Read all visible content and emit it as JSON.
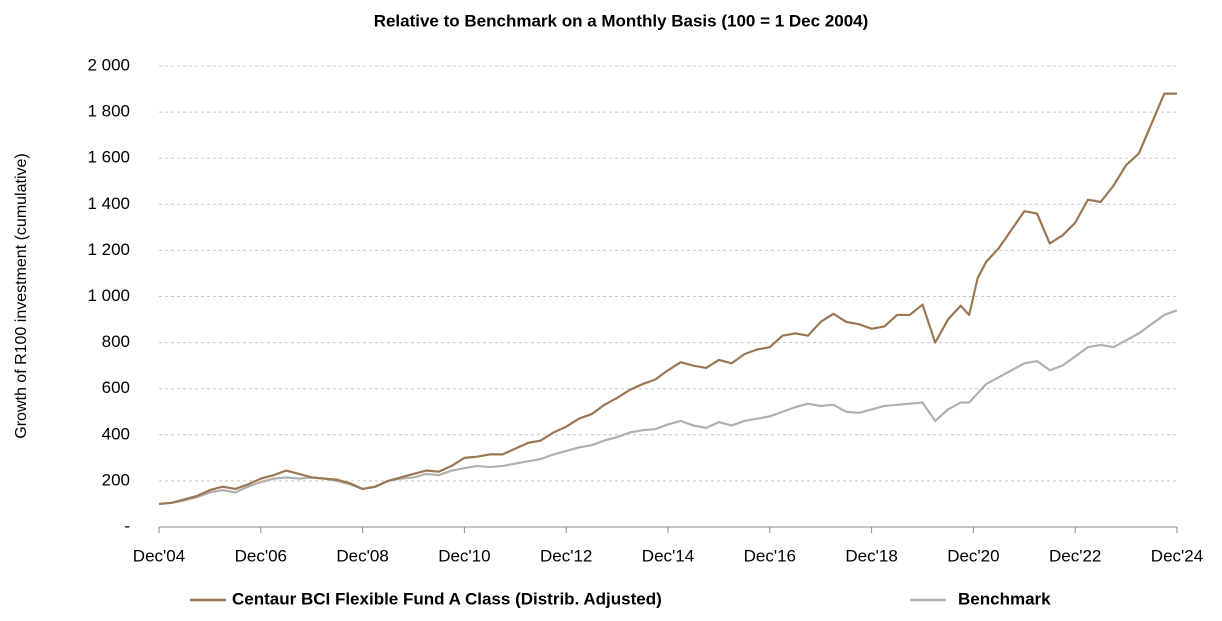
{
  "chart_data": {
    "type": "line",
    "title": "Relative to Benchmark on a Monthly Basis (100 = 1 Dec 2004)",
    "y_label": "Growth of R100 investment (cumulative)",
    "x": [
      "2004-12",
      "2005-03",
      "2005-06",
      "2005-09",
      "2005-12",
      "2006-03",
      "2006-06",
      "2006-09",
      "2006-12",
      "2007-03",
      "2007-06",
      "2007-09",
      "2007-12",
      "2008-03",
      "2008-06",
      "2008-09",
      "2008-12",
      "2009-03",
      "2009-06",
      "2009-09",
      "2009-12",
      "2010-03",
      "2010-06",
      "2010-09",
      "2010-12",
      "2011-03",
      "2011-06",
      "2011-09",
      "2011-12",
      "2012-03",
      "2012-06",
      "2012-09",
      "2012-12",
      "2013-03",
      "2013-06",
      "2013-09",
      "2013-12",
      "2014-03",
      "2014-06",
      "2014-09",
      "2014-12",
      "2015-03",
      "2015-06",
      "2015-09",
      "2015-12",
      "2016-03",
      "2016-06",
      "2016-09",
      "2016-12",
      "2017-03",
      "2017-06",
      "2017-09",
      "2017-12",
      "2018-03",
      "2018-06",
      "2018-09",
      "2018-12",
      "2019-03",
      "2019-06",
      "2019-09",
      "2019-12",
      "2020-03",
      "2020-06",
      "2020-09",
      "2020-11",
      "2021-01",
      "2021-03",
      "2021-06",
      "2021-09",
      "2021-12",
      "2022-03",
      "2022-06",
      "2022-09",
      "2022-12",
      "2023-03",
      "2023-06",
      "2023-09",
      "2023-12",
      "2024-03",
      "2024-06",
      "2024-09",
      "2024-12"
    ],
    "series": [
      {
        "name": "Centaur BCI Flexible Fund A Class (Distrib. Adjusted)",
        "color": "#9b7653",
        "values": [
          100,
          105,
          120,
          135,
          160,
          175,
          165,
          185,
          210,
          225,
          245,
          230,
          215,
          210,
          205,
          190,
          165,
          175,
          200,
          215,
          230,
          245,
          240,
          265,
          300,
          305,
          315,
          315,
          340,
          365,
          375,
          410,
          435,
          470,
          490,
          530,
          560,
          595,
          620,
          640,
          680,
          715,
          700,
          690,
          725,
          710,
          750,
          770,
          780,
          830,
          840,
          830,
          890,
          925,
          890,
          880,
          860,
          870,
          920,
          920,
          965,
          800,
          900,
          960,
          920,
          1080,
          1150,
          1210,
          1290,
          1370,
          1360,
          1230,
          1265,
          1320,
          1420,
          1410,
          1480,
          1570,
          1620,
          1750,
          1880,
          1880
        ]
      },
      {
        "name": "Benchmark",
        "color": "#b0b0b0",
        "values": [
          100,
          105,
          115,
          130,
          150,
          160,
          150,
          175,
          195,
          210,
          215,
          210,
          215,
          210,
          200,
          185,
          165,
          175,
          200,
          210,
          215,
          230,
          225,
          245,
          255,
          265,
          260,
          265,
          275,
          285,
          295,
          315,
          330,
          345,
          355,
          375,
          390,
          410,
          420,
          425,
          445,
          460,
          440,
          430,
          455,
          440,
          460,
          470,
          480,
          500,
          520,
          535,
          525,
          530,
          500,
          495,
          510,
          525,
          530,
          535,
          540,
          460,
          510,
          540,
          540,
          580,
          620,
          650,
          680,
          710,
          720,
          680,
          700,
          740,
          780,
          790,
          780,
          810,
          840,
          880,
          920,
          940
        ]
      }
    ],
    "ylim": [
      0,
      2000
    ],
    "yticks": [
      {
        "value": 0,
        "label": "-"
      },
      200,
      400,
      600,
      800,
      {
        "value": 1000,
        "label": "1 000"
      },
      {
        "value": 1200,
        "label": "1 200"
      },
      {
        "value": 1400,
        "label": "1 400"
      },
      {
        "value": 1600,
        "label": "1 600"
      },
      {
        "value": 1800,
        "label": "1 800"
      },
      {
        "value": 2000,
        "label": "2 000"
      }
    ],
    "xlim": [
      "2004-12",
      "2024-12"
    ],
    "xticks": [
      {
        "value": "2004-12",
        "label": "Dec'04"
      },
      {
        "value": "2006-12",
        "label": "Dec'06"
      },
      {
        "value": "2008-12",
        "label": "Dec'08"
      },
      {
        "value": "2010-12",
        "label": "Dec'10"
      },
      {
        "value": "2012-12",
        "label": "Dec'12"
      },
      {
        "value": "2014-12",
        "label": "Dec'14"
      },
      {
        "value": "2016-12",
        "label": "Dec'16"
      },
      {
        "value": "2018-12",
        "label": "Dec'18"
      },
      {
        "value": "2020-12",
        "label": "Dec'20"
      },
      {
        "value": "2022-12",
        "label": "Dec'22"
      },
      {
        "value": "2024-12",
        "label": "Dec'24"
      }
    ],
    "grid": true,
    "legend": "bottom"
  }
}
